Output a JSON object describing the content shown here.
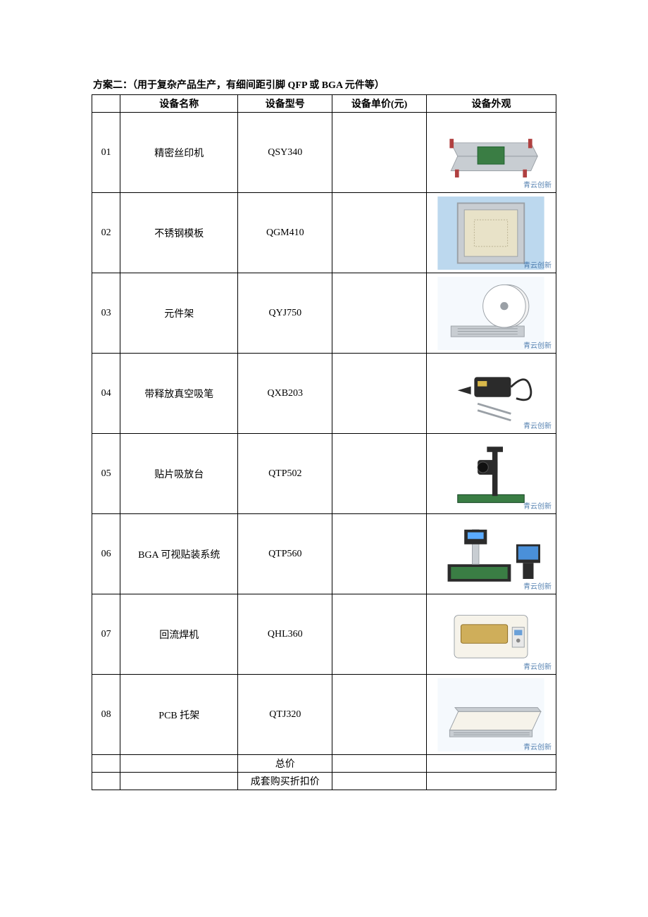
{
  "title": "方案二：（用于复杂产品生产，有细间距引脚 QFP 或 BGA 元件等）",
  "columns": {
    "idx": "",
    "name": "设备名称",
    "model": "设备型号",
    "price": "设备单价(元)",
    "image": "设备外观"
  },
  "watermark": "青云创新",
  "rows": [
    {
      "idx": "01",
      "name": "精密丝印机",
      "model": "QSY340",
      "price": "",
      "img": "printer"
    },
    {
      "idx": "02",
      "name": "不锈钢模板",
      "model": "QGM410",
      "price": "",
      "img": "stencil"
    },
    {
      "idx": "03",
      "name": "元件架",
      "model": "QYJ750",
      "price": "",
      "img": "reel_rack"
    },
    {
      "idx": "04",
      "name": "带释放真空吸笔",
      "model": "QXB203",
      "price": "",
      "img": "vacuum_pen"
    },
    {
      "idx": "05",
      "name": "贴片吸放台",
      "model": "QTP502",
      "price": "",
      "img": "placement_stand"
    },
    {
      "idx": "06",
      "name": "BGA 可视贴装系统",
      "model": "QTP560",
      "price": "",
      "img": "bga_system"
    },
    {
      "idx": "07",
      "name": "回流焊机",
      "model": "QHL360",
      "price": "",
      "img": "reflow_oven"
    },
    {
      "idx": "08",
      "name": "PCB 托架",
      "model": "QTJ320",
      "price": "",
      "img": "pcb_tray"
    }
  ],
  "summary": [
    {
      "label": "总价",
      "value": ""
    },
    {
      "label": "成套购买折扣价",
      "value": ""
    }
  ],
  "styles": {
    "page_bg": "#ffffff",
    "text_color": "#000000",
    "border_color": "#000000",
    "thumb_bg_light": "#f5f9fd",
    "thumb_bg_white": "#ffffff",
    "metal": "#c8cdd2",
    "metal_dark": "#9aa0a6",
    "pcb_green": "#3a7d44",
    "sky": "#bcd8ee",
    "dark": "#2b2b2b",
    "cream": "#f6f3ea",
    "blue": "#3a6ea5"
  }
}
